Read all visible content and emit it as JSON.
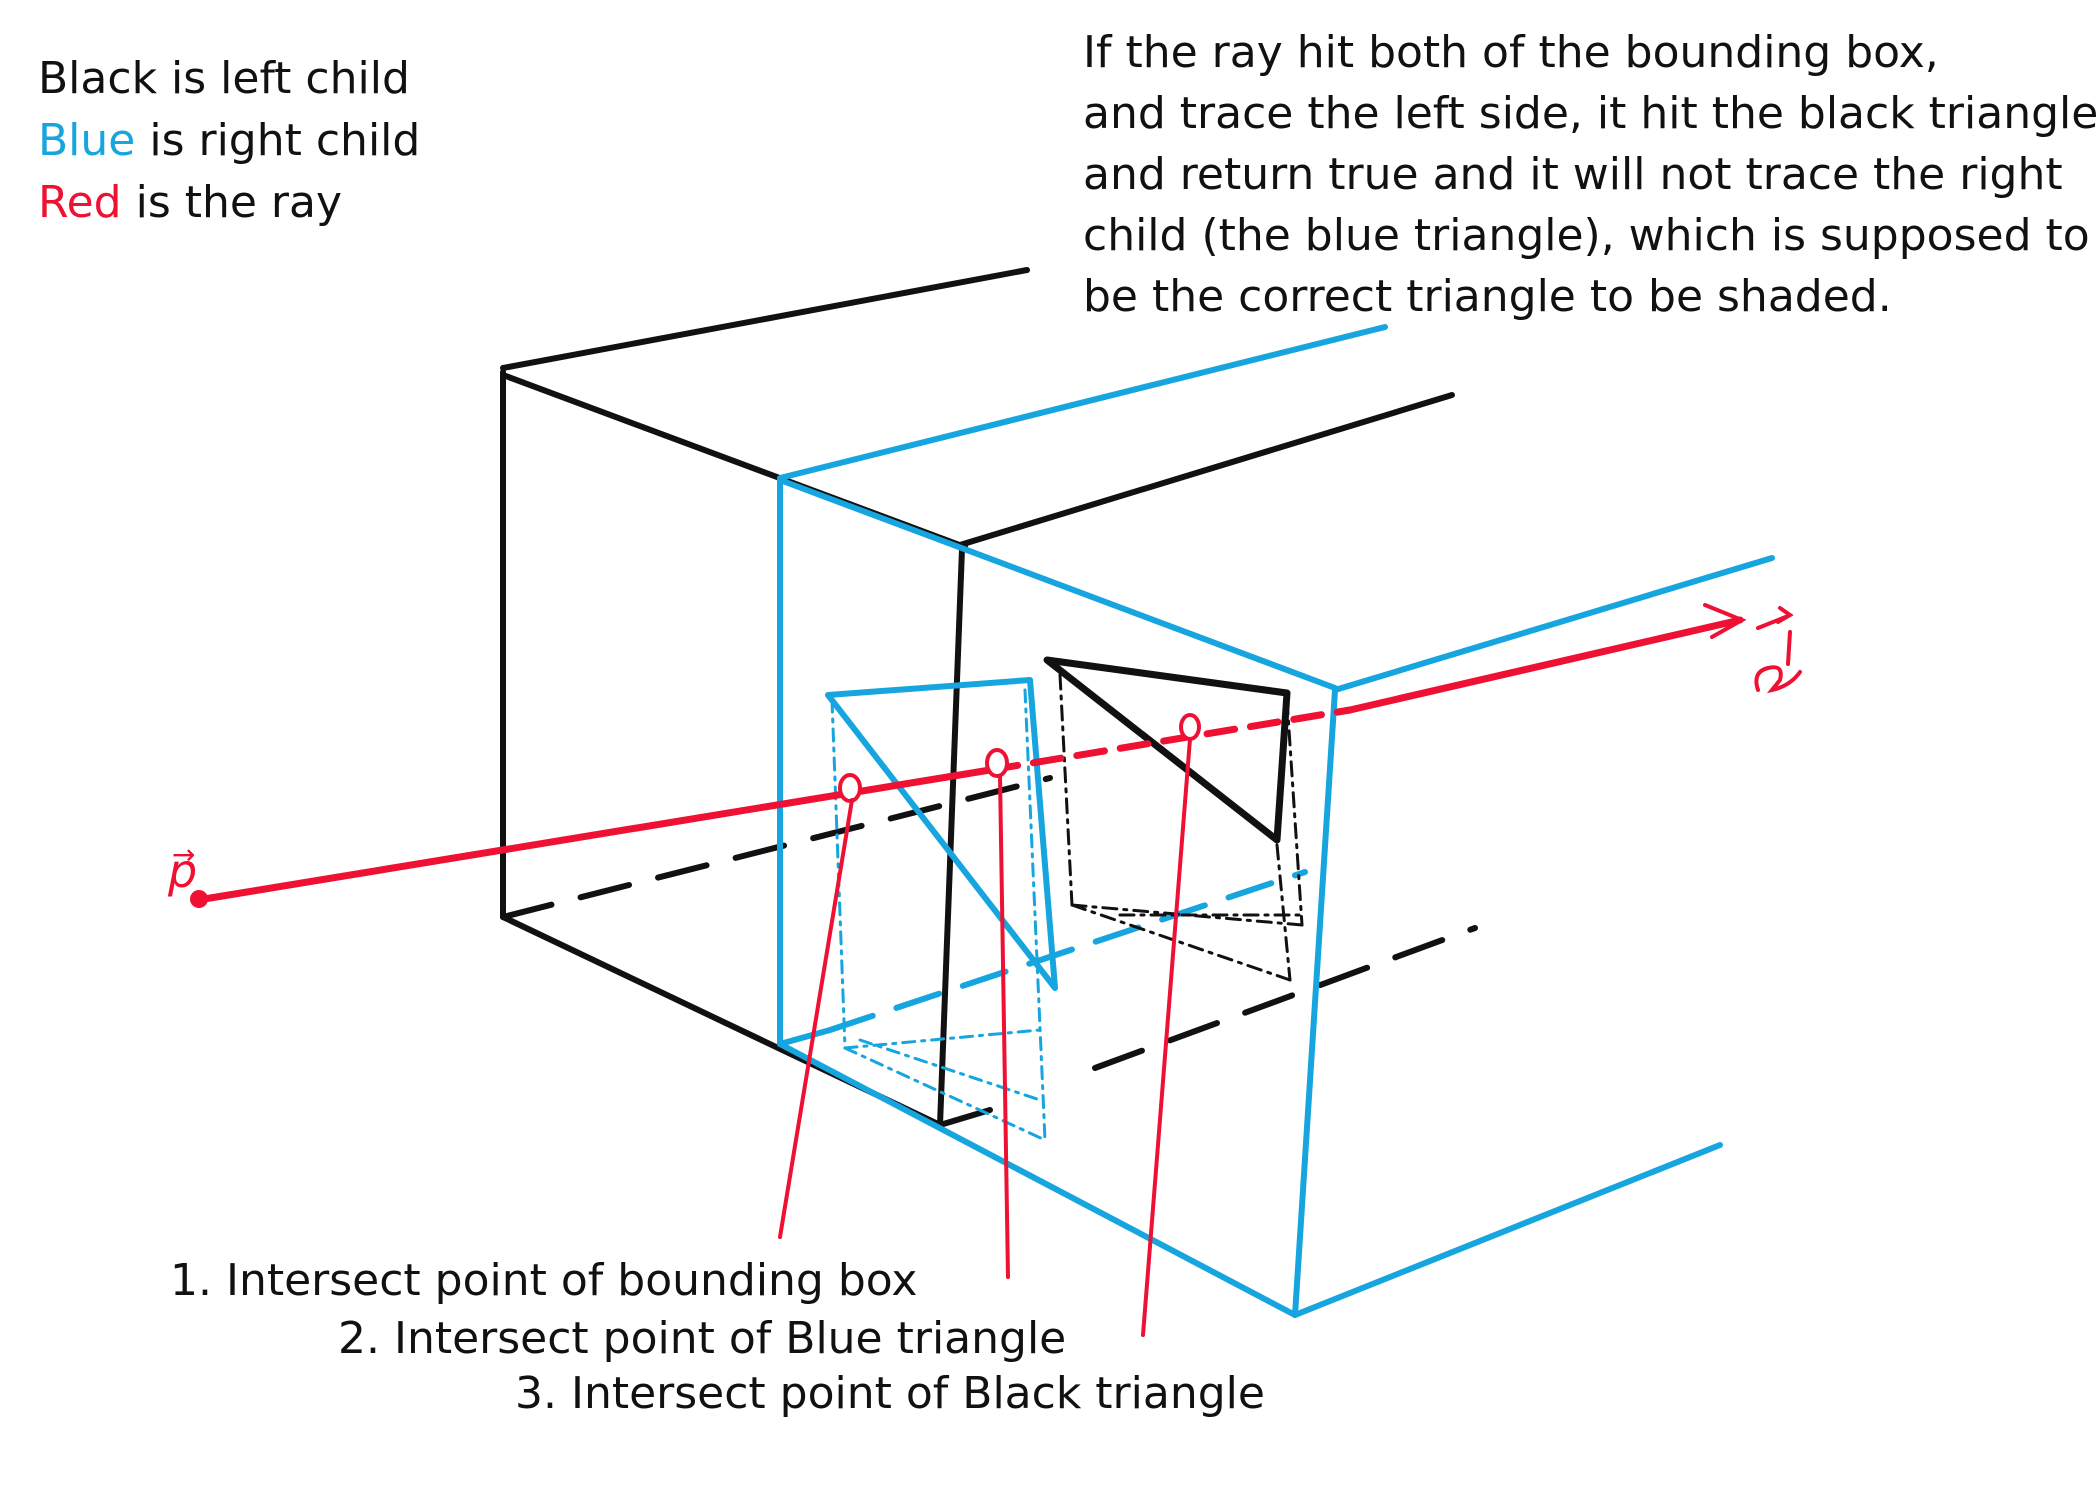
{
  "colors": {
    "black": "#111111",
    "blue": "#16a5de",
    "red": "#ee1133"
  },
  "legend": {
    "black_text": "Black is left child",
    "blue_word": "Blue",
    "blue_rest": " is right child",
    "red_word": "Red",
    "red_rest": " is the ray"
  },
  "explanation": {
    "lines": [
      "If the ray hit both of the bounding box,",
      "and trace the left side, it hit the black triangle,",
      "and return true and it will not trace the right",
      "child (the blue triangle), which is supposed to",
      "be the correct triangle to be shaded."
    ]
  },
  "captions": {
    "c1": "1. Intersect point of bounding box",
    "c2": "2. Intersect point of Blue triangle",
    "c3": "3. Intersect point of Black triangle"
  },
  "labels": {
    "origin": "p",
    "direction": "d",
    "arrow": "→"
  }
}
